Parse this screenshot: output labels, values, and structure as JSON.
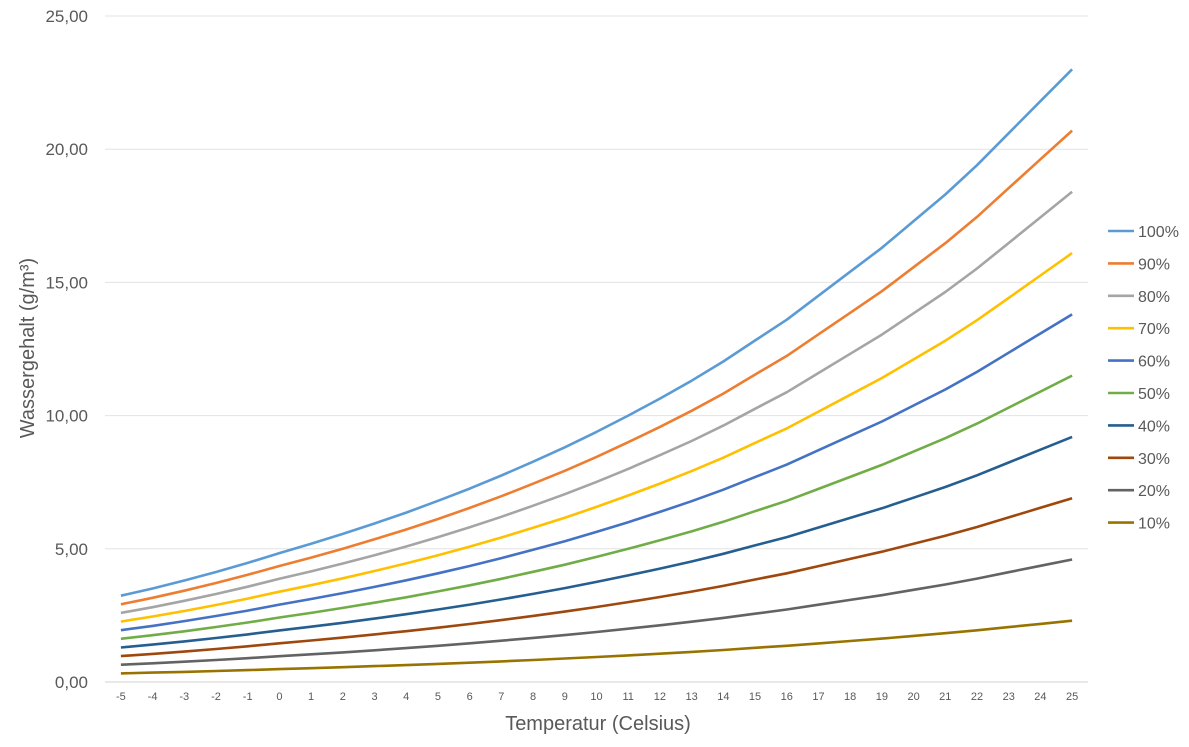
{
  "chart_data": {
    "type": "line",
    "title": "",
    "xlabel": "Temperatur (Celsius)",
    "ylabel": "Wassergehalt (g/m³)",
    "ylim": [
      0,
      25
    ],
    "yticks": [
      "0,00",
      "5,00",
      "10,00",
      "15,00",
      "20,00",
      "25,00"
    ],
    "grid": true,
    "legend_position": "right",
    "x": [
      -5,
      -4,
      -3,
      -2,
      -1,
      0,
      1,
      2,
      3,
      4,
      5,
      6,
      7,
      8,
      9,
      10,
      11,
      12,
      13,
      14,
      15,
      16,
      17,
      18,
      19,
      20,
      21,
      22,
      23,
      24,
      25
    ],
    "saturation": [
      3.24,
      3.51,
      3.81,
      4.13,
      4.47,
      4.84,
      5.19,
      5.56,
      5.95,
      6.36,
      6.8,
      7.26,
      7.75,
      8.27,
      8.81,
      9.39,
      10.0,
      10.64,
      11.31,
      12.03,
      12.82,
      13.6,
      14.5,
      15.4,
      16.3,
      17.3,
      18.3,
      19.4,
      20.6,
      21.8,
      23.0
    ],
    "series": [
      {
        "name": "100%",
        "fraction": 1.0,
        "color": "#5B9BD5"
      },
      {
        "name": "90%",
        "fraction": 0.9,
        "color": "#ED7D31"
      },
      {
        "name": "80%",
        "fraction": 0.8,
        "color": "#A5A5A5"
      },
      {
        "name": "70%",
        "fraction": 0.7,
        "color": "#FFC000"
      },
      {
        "name": "60%",
        "fraction": 0.6,
        "color": "#4472C4"
      },
      {
        "name": "50%",
        "fraction": 0.5,
        "color": "#70AD47"
      },
      {
        "name": "40%",
        "fraction": 0.4,
        "color": "#255E91"
      },
      {
        "name": "30%",
        "fraction": 0.3,
        "color": "#9E480E"
      },
      {
        "name": "20%",
        "fraction": 0.2,
        "color": "#636363"
      },
      {
        "name": "10%",
        "fraction": 0.1,
        "color": "#997300"
      }
    ]
  }
}
